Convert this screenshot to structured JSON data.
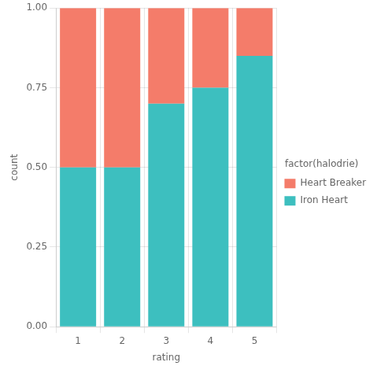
{
  "chart_data": {
    "type": "bar",
    "stacked": true,
    "categories": [
      "1",
      "2",
      "3",
      "4",
      "5"
    ],
    "series": [
      {
        "name": "Iron Heart",
        "color": "#3DBFBF",
        "values": [
          0.5,
          0.5,
          0.7,
          0.75,
          0.85
        ]
      },
      {
        "name": "Heart Breaker",
        "color": "#F47C6A",
        "values": [
          0.5,
          0.5,
          0.3,
          0.25,
          0.15
        ]
      }
    ],
    "xlabel": "rating",
    "ylabel": "count",
    "legend_title": "factor(halodrie)",
    "legend": "right",
    "ylim": [
      0,
      1.0
    ],
    "yticks": [
      {
        "value": 0,
        "label": "0.00"
      },
      {
        "value": 0.25,
        "label": "0.25"
      },
      {
        "value": 0.5,
        "label": "0.50"
      },
      {
        "value": 0.75,
        "label": "0.75"
      },
      {
        "value": 1.0,
        "label": "1.00"
      }
    ],
    "grid": true
  }
}
